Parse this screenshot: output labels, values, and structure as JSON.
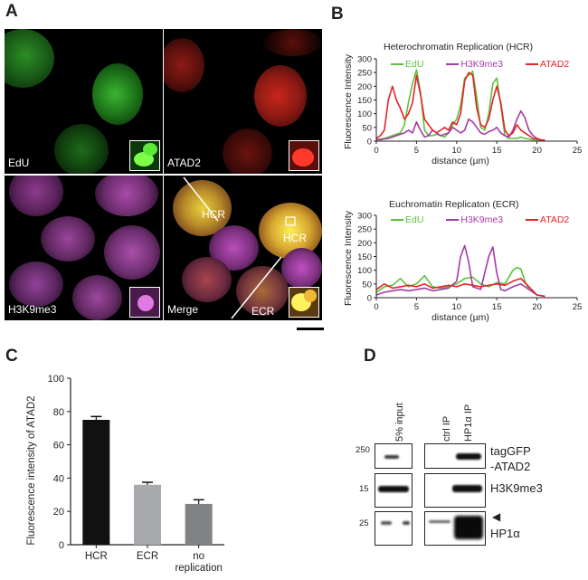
{
  "panels": {
    "a": "A",
    "b": "B",
    "c": "C",
    "d": "D"
  },
  "panel_a": {
    "edu_label": "EdU",
    "atad2_label": "ATAD2",
    "h3k9me3_label": "H3K9me3",
    "merge_label": "Merge",
    "hcr_label_1": "HCR",
    "hcr_label_2": "HCR",
    "ecr_label": "ECR"
  },
  "chart_data": [
    {
      "type": "line",
      "title": "Heterochromatin Replication (HCR)",
      "xlabel": "distance (µm)",
      "ylabel": "Fluorescence Intensity",
      "xlim": [
        0,
        25
      ],
      "ylim": [
        0,
        300
      ],
      "xticks": [
        0,
        5,
        10,
        15,
        20,
        25
      ],
      "yticks": [
        0,
        50,
        100,
        150,
        200,
        250,
        300
      ],
      "series": [
        {
          "name": "EdU",
          "color": "#5cc23a",
          "x": [
            0,
            0.5,
            1,
            1.5,
            2,
            2.5,
            3,
            3.5,
            4,
            4.5,
            5,
            5.5,
            6,
            6.5,
            7,
            7.5,
            8,
            8.5,
            9,
            9.5,
            10,
            10.5,
            11,
            11.5,
            12,
            12.5,
            13,
            13.5,
            14,
            14.5,
            15,
            15.5,
            16,
            16.5,
            17,
            17.5,
            18,
            18.5,
            19,
            19.5,
            20,
            20.5,
            21
          ],
          "y": [
            5,
            8,
            10,
            15,
            20,
            25,
            30,
            60,
            140,
            210,
            260,
            180,
            40,
            20,
            20,
            25,
            20,
            15,
            30,
            60,
            80,
            130,
            230,
            240,
            255,
            160,
            50,
            40,
            100,
            210,
            230,
            130,
            20,
            10,
            10,
            10,
            15,
            10,
            8,
            5,
            5,
            3,
            2
          ]
        },
        {
          "name": "H3K9me3",
          "color": "#a53aa8",
          "x": [
            0,
            0.5,
            1,
            1.5,
            2,
            2.5,
            3,
            3.5,
            4,
            4.5,
            5,
            5.5,
            6,
            6.5,
            7,
            7.5,
            8,
            8.5,
            9,
            9.5,
            10,
            10.5,
            11,
            11.5,
            12,
            12.5,
            13,
            13.5,
            14,
            14.5,
            15,
            15.5,
            16,
            16.5,
            17,
            17.5,
            18,
            18.5,
            19,
            19.5,
            20,
            20.5,
            21
          ],
          "y": [
            5,
            5,
            8,
            10,
            15,
            20,
            25,
            30,
            40,
            30,
            70,
            40,
            15,
            20,
            40,
            30,
            20,
            25,
            30,
            50,
            40,
            30,
            40,
            80,
            70,
            50,
            30,
            25,
            35,
            40,
            50,
            30,
            20,
            15,
            40,
            80,
            110,
            85,
            40,
            20,
            10,
            5,
            3
          ]
        },
        {
          "name": "ATAD2",
          "color": "#e8232a",
          "x": [
            0,
            0.5,
            1,
            1.5,
            2,
            2.5,
            3,
            3.5,
            4,
            4.5,
            5,
            5.5,
            6,
            6.5,
            7,
            7.5,
            8,
            8.5,
            9,
            9.5,
            10,
            10.5,
            11,
            11.5,
            12,
            12.5,
            13,
            13.5,
            14,
            14.5,
            15,
            15.5,
            16,
            16.5,
            17,
            17.5,
            18,
            18.5,
            19,
            19.5,
            20,
            20.5,
            21
          ],
          "y": [
            10,
            20,
            40,
            150,
            200,
            150,
            120,
            80,
            100,
            140,
            240,
            170,
            80,
            60,
            40,
            30,
            40,
            50,
            40,
            70,
            60,
            100,
            220,
            250,
            240,
            120,
            60,
            50,
            80,
            150,
            200,
            140,
            40,
            20,
            30,
            60,
            40,
            30,
            20,
            10,
            8,
            5,
            3
          ]
        }
      ]
    },
    {
      "type": "line",
      "title": "Euchromatin Replicaton (ECR)",
      "xlabel": "distance (µm)",
      "ylabel": "Fluorescence Intensity",
      "xlim": [
        0,
        25
      ],
      "ylim": [
        0,
        300
      ],
      "xticks": [
        0,
        5,
        10,
        15,
        20,
        25
      ],
      "yticks": [
        0,
        50,
        100,
        150,
        200,
        250,
        300
      ],
      "series": [
        {
          "name": "EdU",
          "color": "#5cc23a",
          "x": [
            0,
            1,
            2,
            3,
            4,
            5,
            6,
            7,
            8,
            9,
            10,
            11,
            12,
            13,
            14,
            15,
            16,
            17,
            17.5,
            18,
            18.5,
            19,
            20,
            21
          ],
          "y": [
            20,
            40,
            45,
            70,
            40,
            50,
            80,
            40,
            35,
            40,
            50,
            70,
            75,
            50,
            40,
            55,
            50,
            100,
            110,
            105,
            60,
            30,
            10,
            5
          ]
        },
        {
          "name": "H3K9me3",
          "color": "#a53aa8",
          "x": [
            0,
            1,
            2,
            3,
            4,
            5,
            6,
            7,
            8,
            9,
            10,
            10.5,
            11,
            11.5,
            12,
            13,
            14,
            14.5,
            15,
            15.5,
            16,
            17,
            18,
            19,
            20,
            21
          ],
          "y": [
            10,
            20,
            25,
            30,
            25,
            30,
            35,
            25,
            30,
            35,
            60,
            150,
            190,
            130,
            40,
            30,
            150,
            185,
            90,
            30,
            25,
            40,
            50,
            30,
            10,
            5
          ]
        },
        {
          "name": "ATAD2",
          "color": "#e8232a",
          "x": [
            0,
            1,
            2,
            3,
            4,
            5,
            6,
            7,
            8,
            9,
            10,
            11,
            12,
            13,
            14,
            15,
            16,
            17,
            18,
            19,
            20,
            21
          ],
          "y": [
            30,
            50,
            35,
            40,
            45,
            40,
            50,
            35,
            40,
            45,
            40,
            50,
            45,
            40,
            45,
            50,
            45,
            60,
            70,
            40,
            10,
            5
          ]
        }
      ]
    },
    {
      "type": "bar",
      "xlabel": "",
      "ylabel": "Fluorescence intensity of ATAD2",
      "ylim": [
        0,
        100
      ],
      "yticks": [
        0,
        20,
        40,
        60,
        80,
        100
      ],
      "categories": [
        "HCR",
        "ECR",
        "no replication"
      ],
      "category_lines": [
        [
          "HCR"
        ],
        [
          "ECR"
        ],
        [
          "no",
          "replication"
        ]
      ],
      "values": [
        75,
        36,
        24.5
      ],
      "errors": [
        2,
        1.5,
        2.5
      ],
      "colors": [
        "#111111",
        "#a7a9ac",
        "#808285"
      ]
    }
  ],
  "panel_d": {
    "lanes": [
      "5% input",
      "ctrl IP",
      "HP1α IP"
    ],
    "markers": [
      "250",
      "15",
      "25"
    ],
    "bands": [
      {
        "line1": "tagGFP",
        "line2": "-ATAD2"
      },
      {
        "line1": "H3K9me3",
        "line2": ""
      },
      {
        "line1": "HP1α",
        "line2": ""
      }
    ],
    "arrow": "◀"
  }
}
